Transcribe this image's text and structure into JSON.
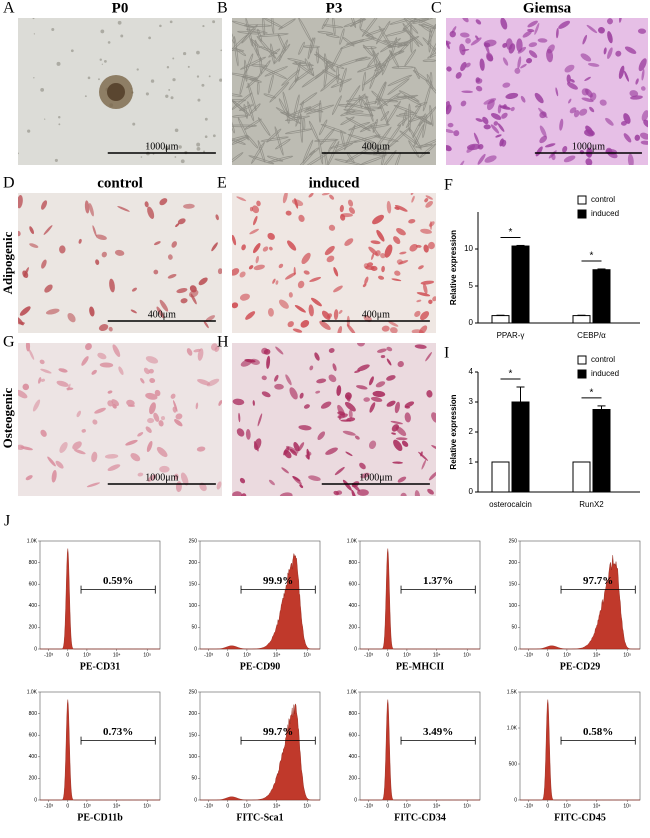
{
  "figure": {
    "panels": [
      {
        "letter": "A",
        "title": "P0",
        "scale_bar": "1000μm"
      },
      {
        "letter": "B",
        "title": "P3",
        "scale_bar": "400μm"
      },
      {
        "letter": "C",
        "title": "Giemsa",
        "scale_bar": "1000μm"
      },
      {
        "letter": "D",
        "title": "control",
        "scale_bar": "400μm"
      },
      {
        "letter": "E",
        "title": "induced",
        "scale_bar": "400μm"
      },
      {
        "letter": "G",
        "scale_bar": "1000μm"
      },
      {
        "letter": "H",
        "scale_bar": "1000μm"
      }
    ],
    "chart_letters": [
      "F",
      "I",
      "J"
    ],
    "row_labels": [
      "Adipogenic",
      "Osteogenic"
    ]
  },
  "chart_data": [
    {
      "type": "bar",
      "ylabel": "Relative expression",
      "categories": [
        "PPAR-γ",
        "CEBP/α"
      ],
      "series": [
        {
          "name": "control",
          "color": "#ffffff",
          "values": [
            1,
            1
          ],
          "errors": [
            0.05,
            0.05
          ]
        },
        {
          "name": "induced",
          "color": "#000000",
          "values": [
            10.4,
            7.2
          ],
          "errors": [
            0.08,
            0.1
          ]
        }
      ],
      "significance": [
        "*",
        "*"
      ],
      "ylim": [
        0,
        15
      ],
      "yticks": [
        0,
        5,
        10
      ],
      "legend": "top-right"
    },
    {
      "type": "bar",
      "ylabel": "Relative expression",
      "categories": [
        "osterocalcin",
        "RunX2"
      ],
      "series": [
        {
          "name": "control",
          "color": "#ffffff",
          "values": [
            1,
            1
          ],
          "errors": [
            0,
            0
          ]
        },
        {
          "name": "induced",
          "color": "#000000",
          "values": [
            3.0,
            2.75
          ],
          "errors": [
            0.5,
            0.12
          ]
        }
      ],
      "significance": [
        "*",
        "*"
      ],
      "ylim": [
        0,
        4
      ],
      "yticks": [
        0,
        1,
        2,
        3,
        4
      ],
      "legend": "top-right"
    },
    {
      "type": "flow",
      "xlabel": "PE-CD31",
      "values": [
        0.59
      ],
      "value_labels": [
        "0.59%"
      ],
      "color": "#c0392b",
      "xlim": [
        -2000,
        262144
      ],
      "xticks": [
        {
          "value": -1000,
          "label": "-10³"
        },
        0,
        {
          "value": 1000,
          "label": "10³"
        },
        {
          "value": 10000,
          "label": "10⁴"
        },
        {
          "value": 100000,
          "label": "10⁵"
        }
      ],
      "ylim": [
        0,
        1000
      ],
      "yticks": [
        0,
        200,
        400,
        600,
        800,
        {
          "value": 1000,
          "label": "1.0K"
        }
      ]
    },
    {
      "type": "flow",
      "xlabel": "PE-CD90",
      "values": [
        99.9
      ],
      "value_labels": [
        "99.9%"
      ],
      "color": "#c0392b",
      "xlim": [
        -2000,
        262144
      ],
      "xticks": [
        {
          "value": -1000,
          "label": "-10³"
        },
        0,
        {
          "value": 1000,
          "label": "10³"
        },
        {
          "value": 10000,
          "label": "10⁴"
        },
        {
          "value": 100000,
          "label": "10⁵"
        }
      ],
      "ylim": [
        0,
        250
      ],
      "yticks": [
        0,
        50,
        100,
        150,
        200,
        250
      ]
    },
    {
      "type": "flow",
      "xlabel": "PE-MHCII",
      "values": [
        1.37
      ],
      "value_labels": [
        "1.37%"
      ],
      "color": "#c0392b",
      "xlim": [
        -2000,
        262144
      ],
      "xticks": [
        {
          "value": -1000,
          "label": "-10³"
        },
        0,
        {
          "value": 1000,
          "label": "10³"
        },
        {
          "value": 10000,
          "label": "10⁴"
        },
        {
          "value": 100000,
          "label": "10⁵"
        }
      ],
      "ylim": [
        0,
        1000
      ],
      "yticks": [
        0,
        200,
        400,
        600,
        800,
        {
          "value": 1000,
          "label": "1.0K"
        }
      ]
    },
    {
      "type": "flow",
      "xlabel": "PE-CD29",
      "values": [
        97.7
      ],
      "value_labels": [
        "97.7%"
      ],
      "color": "#c0392b",
      "xlim": [
        -2000,
        262144
      ],
      "xticks": [
        {
          "value": -1000,
          "label": "-10³"
        },
        0,
        {
          "value": 1000,
          "label": "10³"
        },
        {
          "value": 10000,
          "label": "10⁴"
        },
        {
          "value": 100000,
          "label": "10⁵"
        }
      ],
      "ylim": [
        0,
        250
      ],
      "yticks": [
        0,
        50,
        100,
        150,
        200,
        250
      ]
    },
    {
      "type": "flow",
      "xlabel": "PE-CD11b",
      "values": [
        0.73
      ],
      "value_labels": [
        "0.73%"
      ],
      "color": "#c0392b",
      "xlim": [
        -2000,
        262144
      ],
      "xticks": [
        {
          "value": -1000,
          "label": "-10³"
        },
        0,
        {
          "value": 1000,
          "label": "10³"
        },
        {
          "value": 10000,
          "label": "10⁴"
        },
        {
          "value": 100000,
          "label": "10⁵"
        }
      ],
      "ylim": [
        0,
        1000
      ],
      "yticks": [
        0,
        200,
        400,
        600,
        800,
        {
          "value": 1000,
          "label": "1.0K"
        }
      ]
    },
    {
      "type": "flow",
      "xlabel": "FITC-Sca1",
      "values": [
        99.7
      ],
      "value_labels": [
        "99.7%"
      ],
      "color": "#c0392b",
      "xlim": [
        -2000,
        262144
      ],
      "xticks": [
        {
          "value": -1000,
          "label": "-10³"
        },
        0,
        {
          "value": 1000,
          "label": "10³"
        },
        {
          "value": 10000,
          "label": "10⁴"
        },
        {
          "value": 100000,
          "label": "10⁵"
        }
      ],
      "ylim": [
        0,
        250
      ],
      "yticks": [
        0,
        50,
        100,
        150,
        200,
        250
      ]
    },
    {
      "type": "flow",
      "xlabel": "FITC-CD34",
      "values": [
        3.49
      ],
      "value_labels": [
        "3.49%"
      ],
      "color": "#c0392b",
      "xlim": [
        -2000,
        262144
      ],
      "xticks": [
        {
          "value": -1000,
          "label": "-10³"
        },
        0,
        {
          "value": 1000,
          "label": "10³"
        },
        {
          "value": 10000,
          "label": "10⁴"
        },
        {
          "value": 100000,
          "label": "10⁵"
        }
      ],
      "ylim": [
        0,
        1000
      ],
      "yticks": [
        0,
        200,
        400,
        600,
        800,
        {
          "value": 1000,
          "label": "1.0K"
        }
      ]
    },
    {
      "type": "flow",
      "xlabel": "FITC-CD45",
      "values": [
        0.58
      ],
      "value_labels": [
        "0.58%"
      ],
      "color": "#c0392b",
      "xlim": [
        -2000,
        262144
      ],
      "xticks": [
        {
          "value": -1000,
          "label": "-10³"
        },
        0,
        {
          "value": 1000,
          "label": "10³"
        },
        {
          "value": 10000,
          "label": "10⁴"
        },
        {
          "value": 100000,
          "label": "10⁵"
        }
      ],
      "ylim": [
        0,
        1500
      ],
      "yticks": [
        0,
        500,
        {
          "value": 1000,
          "label": "1.0K"
        },
        {
          "value": 1500,
          "label": "1.5K"
        }
      ]
    }
  ]
}
